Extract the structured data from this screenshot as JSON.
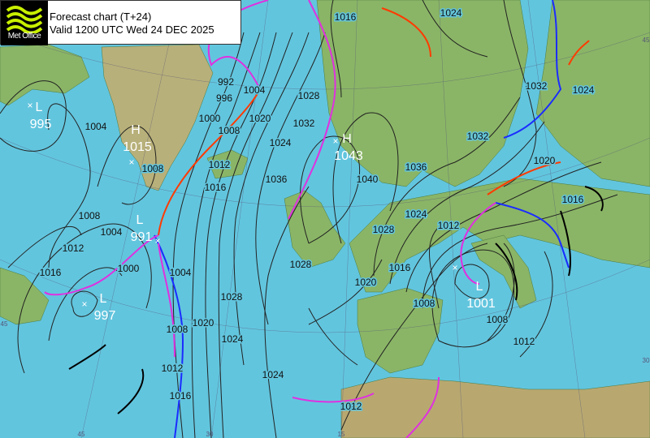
{
  "header": {
    "logo_text": "Met Office",
    "title": "Forecast chart (T+24)",
    "valid": "Valid 1200 UTC Wed 24 DEC 2025"
  },
  "colors": {
    "sea": "#62c5de",
    "land": "#8ab566",
    "cold_front": "#1a2cff",
    "warm_front": "#ff3a00",
    "occluded_front": "#e030e0",
    "isobar": "#222222",
    "logo_accent": "#c8f000"
  },
  "pressure_centres": [
    {
      "type": "L",
      "value": "995"
    },
    {
      "type": "H",
      "value": "1015"
    },
    {
      "type": "L",
      "value": "991"
    },
    {
      "type": "L",
      "value": "997"
    },
    {
      "type": "H",
      "value": "1043"
    },
    {
      "type": "L",
      "value": "1001"
    }
  ],
  "isobar_labels": [
    "1016",
    "1024",
    "992",
    "996",
    "1000",
    "1004",
    "1008",
    "1012",
    "1016",
    "1020",
    "1024",
    "1028",
    "1032",
    "1036",
    "1004",
    "1008",
    "1008",
    "1012",
    "1004",
    "1000",
    "1016",
    "1004",
    "1008",
    "1012",
    "1016",
    "1020",
    "1024",
    "1028",
    "1040",
    "1036",
    "1032",
    "1028",
    "1024",
    "1020",
    "1016",
    "1012",
    "1008",
    "1008",
    "1012",
    "1024",
    "1012",
    "1032",
    "1020",
    "1016",
    "1028",
    "1024"
  ],
  "grid_labels": [
    "45",
    "30",
    "15",
    "45",
    "45",
    "30"
  ]
}
